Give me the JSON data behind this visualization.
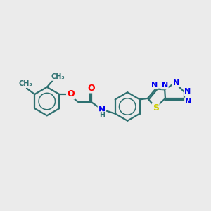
{
  "bg_color": "#ebebeb",
  "bond_color": "#2d7070",
  "bond_width": 1.6,
  "atom_colors": {
    "O": "#ff0000",
    "N": "#0000ee",
    "S": "#cccc00",
    "H": "#2d7070",
    "C": "#2d7070"
  },
  "font_size": 9,
  "figsize": [
    3.0,
    3.0
  ],
  "dpi": 100,
  "xlim": [
    0,
    10
  ],
  "ylim": [
    0,
    10
  ]
}
